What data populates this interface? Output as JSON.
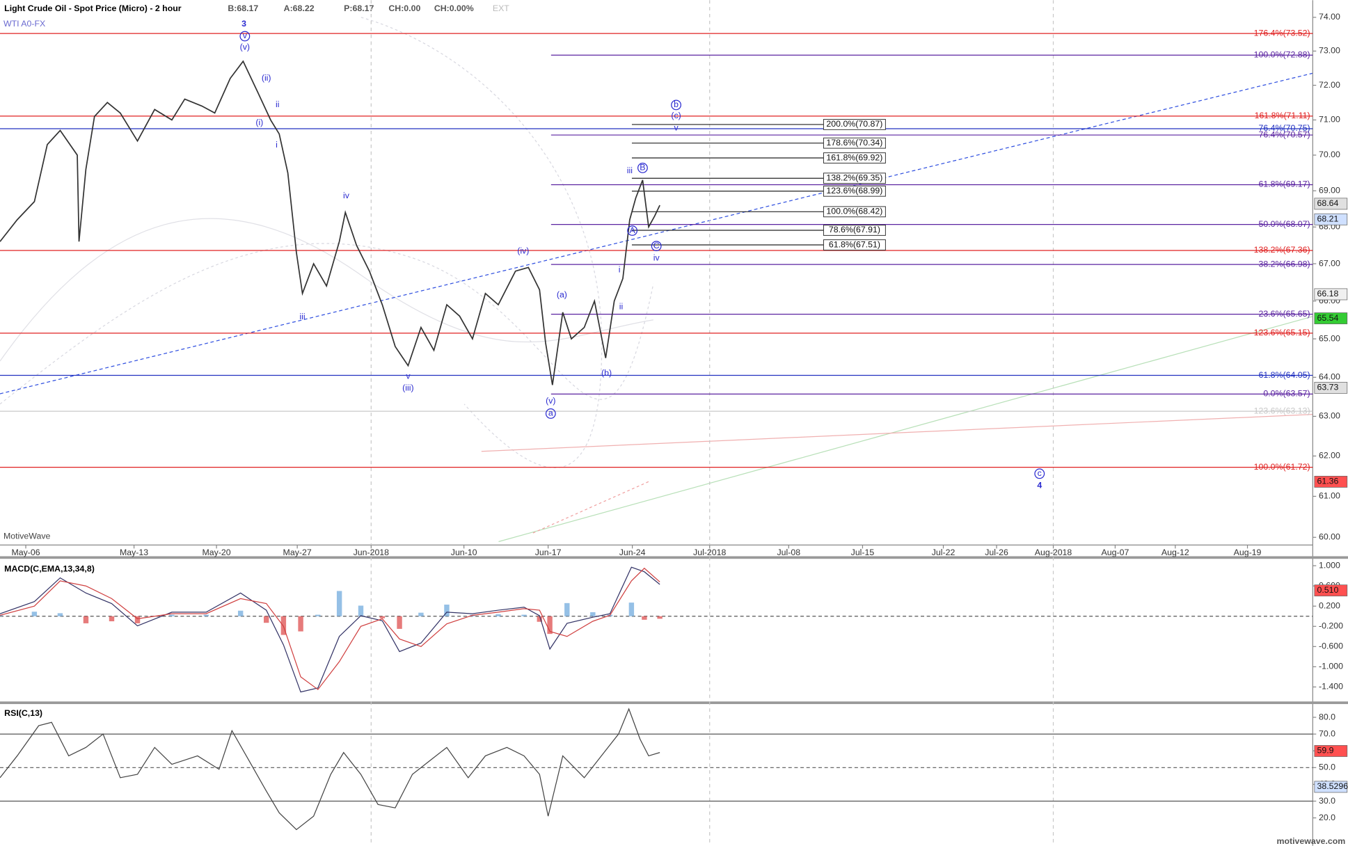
{
  "chart_data": [
    {
      "type": "line",
      "title": "Light Crude Oil - Spot Price (Micro) - 2 hour",
      "subtitle": "WTI A0-FX",
      "quote": [
        "B:68.17",
        "A:68.22",
        "P:68.17",
        "CH:0.00",
        "CH:0.00%",
        "EXT"
      ],
      "watermark": "MotiveWave",
      "footer": "motivewave.com",
      "log_scale": true,
      "xlim": [
        0,
        764
      ],
      "ylim": [
        60,
        74
      ],
      "xticks": [
        {
          "value": 15,
          "label": "May-06"
        },
        {
          "value": 78,
          "label": "May-13"
        },
        {
          "value": 126,
          "label": "May-20"
        },
        {
          "value": 173,
          "label": "May-27"
        },
        {
          "value": 216,
          "label": "Jun-2018",
          "grid": true
        },
        {
          "value": 270,
          "label": "Jun-10"
        },
        {
          "value": 319,
          "label": "Jun-17"
        },
        {
          "value": 368,
          "label": "Jun-24"
        },
        {
          "value": 413,
          "label": "Jul-2018",
          "grid": true
        },
        {
          "value": 459,
          "label": "Jul-08"
        },
        {
          "value": 502,
          "label": "Jul-15"
        },
        {
          "value": 549,
          "label": "Jul-22"
        },
        {
          "value": 580,
          "label": "Jul-26"
        },
        {
          "value": 613,
          "label": "Aug-2018",
          "grid": true
        },
        {
          "value": 649,
          "label": "Aug-07"
        },
        {
          "value": 684,
          "label": "Aug-12"
        },
        {
          "value": 726,
          "label": "Aug-19"
        }
      ],
      "yticks": [
        {
          "value": 74,
          "label": "74.00"
        },
        {
          "value": 73,
          "label": "73.00"
        },
        {
          "value": 72,
          "label": "72.00"
        },
        {
          "value": 71,
          "label": "71.00"
        },
        {
          "value": 70,
          "label": "70.00"
        },
        {
          "value": 69,
          "label": "69.00"
        },
        {
          "value": 68,
          "label": "68.00"
        },
        {
          "value": 67,
          "label": "67.00"
        },
        {
          "value": 66,
          "label": "66.00"
        },
        {
          "value": 65,
          "label": "65.00"
        },
        {
          "value": 64,
          "label": "64.00"
        },
        {
          "value": 63,
          "label": "63.00"
        },
        {
          "value": 62,
          "label": "62.00"
        },
        {
          "value": 61,
          "label": "61.00"
        },
        {
          "value": 60,
          "label": "60.00"
        }
      ],
      "x": [
        0,
        10,
        20,
        27.5,
        35,
        45,
        46,
        50,
        55,
        62.5,
        70,
        80,
        90,
        100,
        107.5,
        117.5,
        125,
        134,
        141.5,
        150,
        157.5,
        162.5,
        167.5,
        172.5,
        176,
        182.5,
        190,
        197.5,
        201,
        207.5,
        215,
        222.5,
        230,
        237.5,
        245,
        252.5,
        260,
        267.5,
        275,
        282.5,
        290,
        300,
        307.5,
        314,
        317.5,
        321.5,
        327.5,
        332.5,
        340,
        346,
        352.5,
        357.5,
        362.5,
        366.5,
        370,
        374,
        377.5,
        381,
        384
      ],
      "series": [
        {
          "color": "#333333",
          "values": [
            67.6,
            68.2,
            68.7,
            70.3,
            70.7,
            70.0,
            67.6,
            69.6,
            71.1,
            71.5,
            71.2,
            70.4,
            71.3,
            71.0,
            71.6,
            71.4,
            71.2,
            72.2,
            72.7,
            71.8,
            71.0,
            70.6,
            69.5,
            67.3,
            66.2,
            67.0,
            66.4,
            67.6,
            68.4,
            67.5,
            66.8,
            65.9,
            64.8,
            64.3,
            65.3,
            64.7,
            65.9,
            65.6,
            65.0,
            66.2,
            65.9,
            66.8,
            66.9,
            66.3,
            64.9,
            63.8,
            65.7,
            65.0,
            65.3,
            66.0,
            64.5,
            66.0,
            66.6,
            68.2,
            68.8,
            69.3,
            68.0,
            68.3,
            68.6
          ]
        }
      ],
      "levels": [
        {
          "kind": "extension",
          "color": "#e02020",
          "value": 73.52,
          "label": "176.4%(73.52)"
        },
        {
          "kind": "extension",
          "color": "#e02020",
          "value": 71.11,
          "label": "161.8%(71.11)"
        },
        {
          "kind": "extension",
          "color": "#e02020",
          "value": 67.36,
          "label": "138.2%(67.36)"
        },
        {
          "kind": "extension",
          "color": "#e02020",
          "value": 65.15,
          "label": "123.6%(65.15)"
        },
        {
          "kind": "extension",
          "color": "#e02020",
          "value": 61.72,
          "label": "100.0%(61.72)"
        },
        {
          "kind": "extension",
          "color": "#c8c8c8",
          "value": 63.13,
          "label": "123.6%(63.13)"
        },
        {
          "kind": "support",
          "color": "#2030c0",
          "value": 70.75,
          "label": "76.4%(70.75)"
        },
        {
          "kind": "support",
          "color": "#2030c0",
          "value": 64.05,
          "label": "61.8%(64.05)"
        },
        {
          "kind": "retracement",
          "color": "#5a22a0",
          "value": 72.88,
          "label": "100.0%(72.88)"
        },
        {
          "kind": "retracement",
          "color": "#5a22a0",
          "value": 70.57,
          "label": "76.4%(70.57)"
        },
        {
          "kind": "retracement",
          "color": "#5a22a0",
          "value": 69.17,
          "label": "61.8%(69.17)"
        },
        {
          "kind": "retracement",
          "color": "#5a22a0",
          "value": 68.07,
          "label": "50.0%(68.07)"
        },
        {
          "kind": "retracement",
          "color": "#5a22a0",
          "value": 66.98,
          "label": "38.2%(66.98)"
        },
        {
          "kind": "retracement",
          "color": "#5a22a0",
          "value": 65.65,
          "label": "23.6%(65.65)"
        },
        {
          "kind": "retracement",
          "color": "#5a22a0",
          "value": 63.57,
          "label": "0.0%(63.57)"
        },
        {
          "kind": "projection",
          "color": "#222222",
          "value": 70.87,
          "label": "200.0%(70.87)"
        },
        {
          "kind": "projection",
          "color": "#222222",
          "value": 70.34,
          "label": "178.6%(70.34)"
        },
        {
          "kind": "projection",
          "color": "#222222",
          "value": 69.92,
          "label": "161.8%(69.92)"
        },
        {
          "kind": "projection",
          "color": "#222222",
          "value": 69.35,
          "label": "138.2%(69.35)"
        },
        {
          "kind": "projection",
          "color": "#222222",
          "value": 68.99,
          "label": "123.6%(68.99)"
        },
        {
          "kind": "projection",
          "color": "#222222",
          "value": 68.42,
          "label": "100.0%(68.42)"
        },
        {
          "kind": "projection",
          "color": "#222222",
          "value": 67.91,
          "label": "78.6%(67.91)"
        },
        {
          "kind": "projection",
          "color": "#222222",
          "value": 67.51,
          "label": "61.8%(67.51)"
        }
      ],
      "badges": [
        {
          "value": 68.64,
          "color": "#e0e0e0"
        },
        {
          "value": 68.21,
          "color": "#cfe0ff"
        },
        {
          "value": 66.18,
          "color": "#f0f0f0"
        },
        {
          "value": 65.54,
          "color": "#33cc33"
        },
        {
          "value": 63.73,
          "color": "#e0e0e0"
        },
        {
          "value": 61.36,
          "color": "#ff5050"
        }
      ],
      "annotations": [
        {
          "text": "3",
          "x": 142,
          "y": 73.8,
          "bold": true
        },
        {
          "text": "v",
          "x": 142.5,
          "y": 73.44,
          "circled": true
        },
        {
          "text": "(v)",
          "x": 142.5,
          "y": 73.11
        },
        {
          "text": "(ii)",
          "x": 155,
          "y": 72.2
        },
        {
          "text": "ii",
          "x": 161.5,
          "y": 71.43
        },
        {
          "text": "(i)",
          "x": 151,
          "y": 70.91
        },
        {
          "text": "i",
          "x": 161,
          "y": 70.28
        },
        {
          "text": "iv",
          "x": 201.5,
          "y": 68.85
        },
        {
          "text": "iii",
          "x": 176,
          "y": 65.57
        },
        {
          "text": "(iv)",
          "x": 304.5,
          "y": 67.34
        },
        {
          "text": "v",
          "x": 237.5,
          "y": 64.02
        },
        {
          "text": "(iii)",
          "x": 237.5,
          "y": 63.71
        },
        {
          "text": "(a)",
          "x": 327,
          "y": 66.16
        },
        {
          "text": "(b)",
          "x": 353,
          "y": 64.1
        },
        {
          "text": "(v)",
          "x": 320.5,
          "y": 63.38
        },
        {
          "text": "a",
          "x": 320.5,
          "y": 63.07,
          "circled": true
        },
        {
          "text": "i",
          "x": 360.5,
          "y": 66.83
        },
        {
          "text": "ii",
          "x": 361.5,
          "y": 65.84
        },
        {
          "text": "iii",
          "x": 366.5,
          "y": 69.55
        },
        {
          "text": "B",
          "x": 374,
          "y": 69.64,
          "circled": true
        },
        {
          "text": "A",
          "x": 368,
          "y": 67.9,
          "circled": true
        },
        {
          "text": "C",
          "x": 382,
          "y": 67.48,
          "circled": true
        },
        {
          "text": "iv",
          "x": 382,
          "y": 67.15
        },
        {
          "text": "b",
          "x": 393.5,
          "y": 71.43,
          "circled": true
        },
        {
          "text": "(c)",
          "x": 393.5,
          "y": 71.11
        },
        {
          "text": "v",
          "x": 393.5,
          "y": 70.76
        },
        {
          "text": "c",
          "x": 605,
          "y": 61.56,
          "circled": true
        },
        {
          "text": "4",
          "x": 605,
          "y": 61.26,
          "bold": true
        }
      ]
    },
    {
      "type": "line",
      "title": "MACD(C,EMA,13,34,8)",
      "xlim": [
        0,
        764
      ],
      "ylim": [
        -1.67,
        1.12
      ],
      "yticks": [
        {
          "value": 1,
          "label": "1.000"
        },
        {
          "value": 0.6,
          "label": "0.600"
        },
        {
          "value": 0.2,
          "label": "0.200"
        },
        {
          "value": -0.2,
          "label": "-0.200"
        },
        {
          "value": -0.6,
          "label": "-0.600"
        },
        {
          "value": -1,
          "label": "-1.000"
        },
        {
          "value": -1.4,
          "label": "-1.400"
        }
      ],
      "ref_lines": [
        {
          "value": 0,
          "dashed": true
        }
      ],
      "x": [
        0,
        20,
        35,
        50,
        65,
        80,
        100,
        120,
        140,
        155,
        165,
        175,
        185,
        197.5,
        210,
        222.5,
        232.5,
        245,
        260,
        275,
        290,
        305,
        314,
        320,
        330,
        345,
        355,
        367.5,
        375,
        384
      ],
      "series": [
        {
          "color": "#333366",
          "values": [
            0.05,
            0.29,
            0.76,
            0.46,
            0.25,
            -0.19,
            0.08,
            0.08,
            0.46,
            0.12,
            -0.57,
            -1.5,
            -1.42,
            -0.4,
            0.01,
            -0.09,
            -0.7,
            -0.53,
            0.08,
            0.05,
            0.12,
            0.18,
            0.01,
            -0.65,
            -0.14,
            -0.02,
            0.05,
            0.97,
            0.88,
            0.63
          ]
        },
        {
          "color": "#d04040",
          "values": [
            0.02,
            0.2,
            0.7,
            0.6,
            0.35,
            -0.05,
            0.05,
            0.05,
            0.35,
            0.25,
            -0.2,
            -1.2,
            -1.45,
            -0.9,
            -0.2,
            -0.05,
            -0.45,
            -0.6,
            -0.15,
            0.02,
            0.08,
            0.15,
            0.12,
            -0.3,
            -0.4,
            -0.1,
            0.02,
            0.7,
            0.95,
            0.68
          ]
        }
      ],
      "histogram": {
        "up_color": "#7ab0e0",
        "down_color": "#e05a5a",
        "values": [
          0.03,
          0.09,
          0.06,
          -0.14,
          -0.1,
          -0.14,
          0.03,
          0.03,
          0.11,
          -0.13,
          -0.37,
          -0.3,
          0.03,
          0.5,
          0.21,
          -0.04,
          -0.25,
          0.07,
          0.23,
          0.03,
          0.04,
          0.03,
          -0.11,
          -0.35,
          0.26,
          0.08,
          0.03,
          0.27,
          -0.07,
          -0.05
        ]
      },
      "badges": [
        {
          "value": 0.51,
          "label": "0.510",
          "color": "#ff5050"
        }
      ]
    },
    {
      "type": "line",
      "title": "RSI(C,13)",
      "xlim": [
        0,
        764
      ],
      "ylim": [
        10.5,
        87.4
      ],
      "yticks": [
        {
          "value": 80,
          "label": "80.0"
        },
        {
          "value": 70,
          "label": "70.0"
        },
        {
          "value": 60,
          "label": "60.0"
        },
        {
          "value": 50,
          "label": "50.0"
        },
        {
          "value": 40,
          "label": "40.0"
        },
        {
          "value": 30,
          "label": "30.0"
        },
        {
          "value": 20,
          "label": "20.0"
        }
      ],
      "ref_lines": [
        {
          "value": 70
        },
        {
          "value": 50,
          "dashed": true
        },
        {
          "value": 30
        }
      ],
      "x": [
        0,
        10,
        22.5,
        30,
        40,
        50,
        60,
        70,
        80,
        90,
        100,
        115,
        127.5,
        135,
        145,
        155,
        162.5,
        172.5,
        182.5,
        192.5,
        200,
        210,
        220,
        230,
        240,
        250,
        260,
        272.5,
        282.5,
        295,
        305,
        314,
        319,
        327.5,
        340,
        350,
        360,
        366,
        372.5,
        377.5,
        384
      ],
      "series": [
        {
          "color": "#444444",
          "values": [
            44,
            57,
            75,
            77,
            57,
            62,
            70,
            44,
            46,
            62,
            52,
            57,
            49,
            72,
            54,
            36,
            23,
            13,
            21,
            46,
            59,
            46,
            28,
            26,
            46,
            54,
            62,
            44,
            57,
            62,
            57,
            46,
            21,
            57,
            44,
            57,
            70,
            85,
            67,
            57,
            59
          ]
        }
      ],
      "badges": [
        {
          "value": 59.9,
          "color": "#ff5050"
        },
        {
          "value": 38.5296,
          "color": "#cfe0ff"
        }
      ]
    }
  ]
}
